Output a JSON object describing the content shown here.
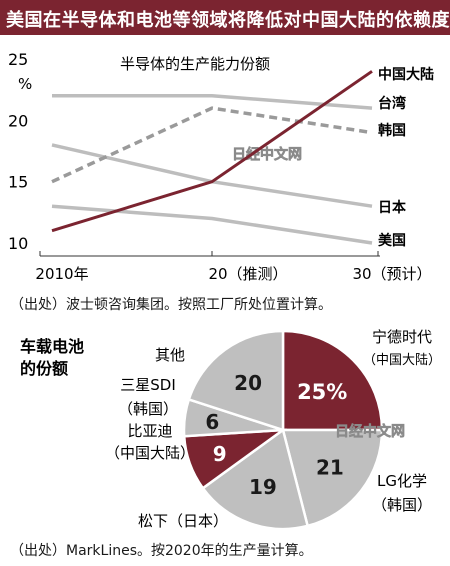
{
  "header": {
    "title": "美国在半导体和电池等领域将降低对中国大陆的依赖度"
  },
  "watermark": "日经中文网",
  "chart_data": [
    {
      "type": "line",
      "title": "半导体的生产能力份额",
      "ylabel": "%",
      "x": [
        "2010年",
        "20（推测）",
        "30（预计）"
      ],
      "ylim": [
        10,
        25
      ],
      "yticks": [
        10,
        15,
        20,
        25
      ],
      "grid": false,
      "series": [
        {
          "name": "中国大陆",
          "values": [
            11,
            15,
            24
          ],
          "color": "#7b2430",
          "style": "solid"
        },
        {
          "name": "台湾",
          "values": [
            22,
            22,
            21
          ],
          "color": "#bdbdbd",
          "style": "solid"
        },
        {
          "name": "韩国",
          "values": [
            15,
            21,
            19
          ],
          "color": "#9a9a9a",
          "style": "dashed"
        },
        {
          "name": "日本",
          "values": [
            18,
            15,
            13
          ],
          "color": "#bdbdbd",
          "style": "solid"
        },
        {
          "name": "美国",
          "values": [
            13,
            12,
            10
          ],
          "color": "#bdbdbd",
          "style": "solid"
        }
      ]
    },
    {
      "type": "pie",
      "title": "车载电池\n的份额",
      "unit": "%",
      "slices": [
        {
          "name": "宁德时代",
          "sub": "（中国大陆）",
          "value": 25,
          "label": "25%",
          "color": "#7b2430",
          "text_color": "#ffffff"
        },
        {
          "name": "LG化学",
          "sub": "（韩国）",
          "value": 21,
          "label": "21",
          "color": "#bfbfbf",
          "text_color": "#1a1a1a"
        },
        {
          "name": "松下（日本）",
          "sub": "",
          "value": 19,
          "label": "19",
          "color": "#bfbfbf",
          "text_color": "#1a1a1a"
        },
        {
          "name": "比亚迪",
          "sub": "（中国大陆）",
          "value": 9,
          "label": "9",
          "color": "#7b2430",
          "text_color": "#ffffff"
        },
        {
          "name": "三星SDI",
          "sub": "（韩国）",
          "value": 6,
          "label": "6",
          "color": "#bfbfbf",
          "text_color": "#1a1a1a"
        },
        {
          "name": "其他",
          "sub": "",
          "value": 20,
          "label": "20",
          "color": "#bfbfbf",
          "text_color": "#1a1a1a"
        }
      ]
    }
  ],
  "sources": {
    "line": "（出处）波士顿咨询集团。按照工厂所处位置计算。",
    "pie": "（出处）MarkLines。按2020年的生产量计算。"
  }
}
